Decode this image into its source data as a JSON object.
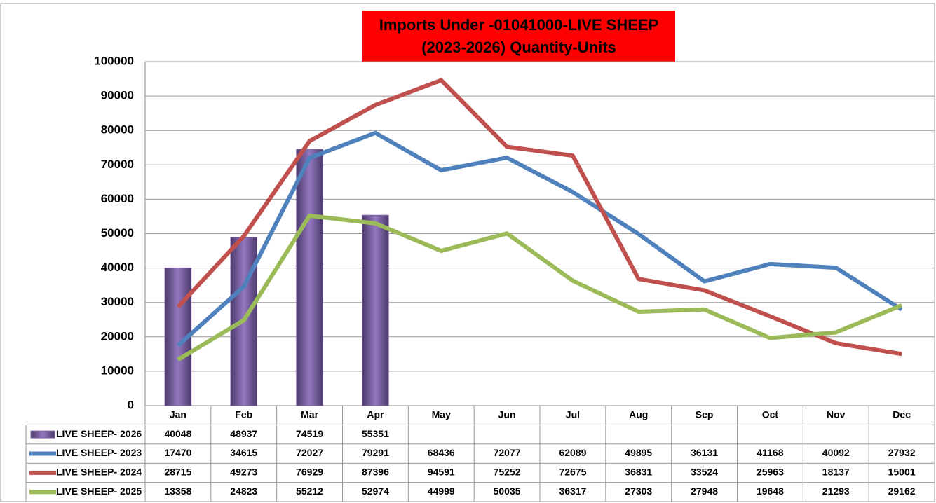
{
  "chart_data": {
    "type": "combo",
    "title": [
      "Imports Under -01041000-LIVE SHEEP",
      "(2023-2026)  Quantity-Units"
    ],
    "title_background": "#ff0000",
    "categories": [
      "Jan",
      "Feb",
      "Mar",
      "Apr",
      "May",
      "Jun",
      "Jul",
      "Aug",
      "Sep",
      "Oct",
      "Nov",
      "Dec"
    ],
    "series": [
      {
        "name": "LIVE SHEEP- 2026",
        "type": "bar",
        "color": "#8064a2",
        "values": [
          40048,
          48937,
          74519,
          55351,
          null,
          null,
          null,
          null,
          null,
          null,
          null,
          null
        ]
      },
      {
        "name": "LIVE SHEEP- 2023",
        "type": "line",
        "color": "#4f81bd",
        "values": [
          17470,
          34615,
          72027,
          79291,
          68436,
          72077,
          62089,
          49895,
          36131,
          41168,
          40092,
          27932
        ]
      },
      {
        "name": "LIVE SHEEP- 2024",
        "type": "line",
        "color": "#c0504d",
        "values": [
          28715,
          49273,
          76929,
          87396,
          94591,
          75252,
          72675,
          36831,
          33524,
          25963,
          18137,
          15001
        ]
      },
      {
        "name": "LIVE SHEEP- 2025",
        "type": "line",
        "color": "#9bbb59",
        "values": [
          13358,
          24823,
          55212,
          52974,
          44999,
          50035,
          36317,
          27303,
          27948,
          19648,
          21293,
          29162
        ]
      }
    ],
    "ylim": [
      0,
      100000
    ],
    "yticks": [
      0,
      10000,
      20000,
      30000,
      40000,
      50000,
      60000,
      70000,
      80000,
      90000,
      100000
    ],
    "grid": true,
    "data_table": true
  }
}
